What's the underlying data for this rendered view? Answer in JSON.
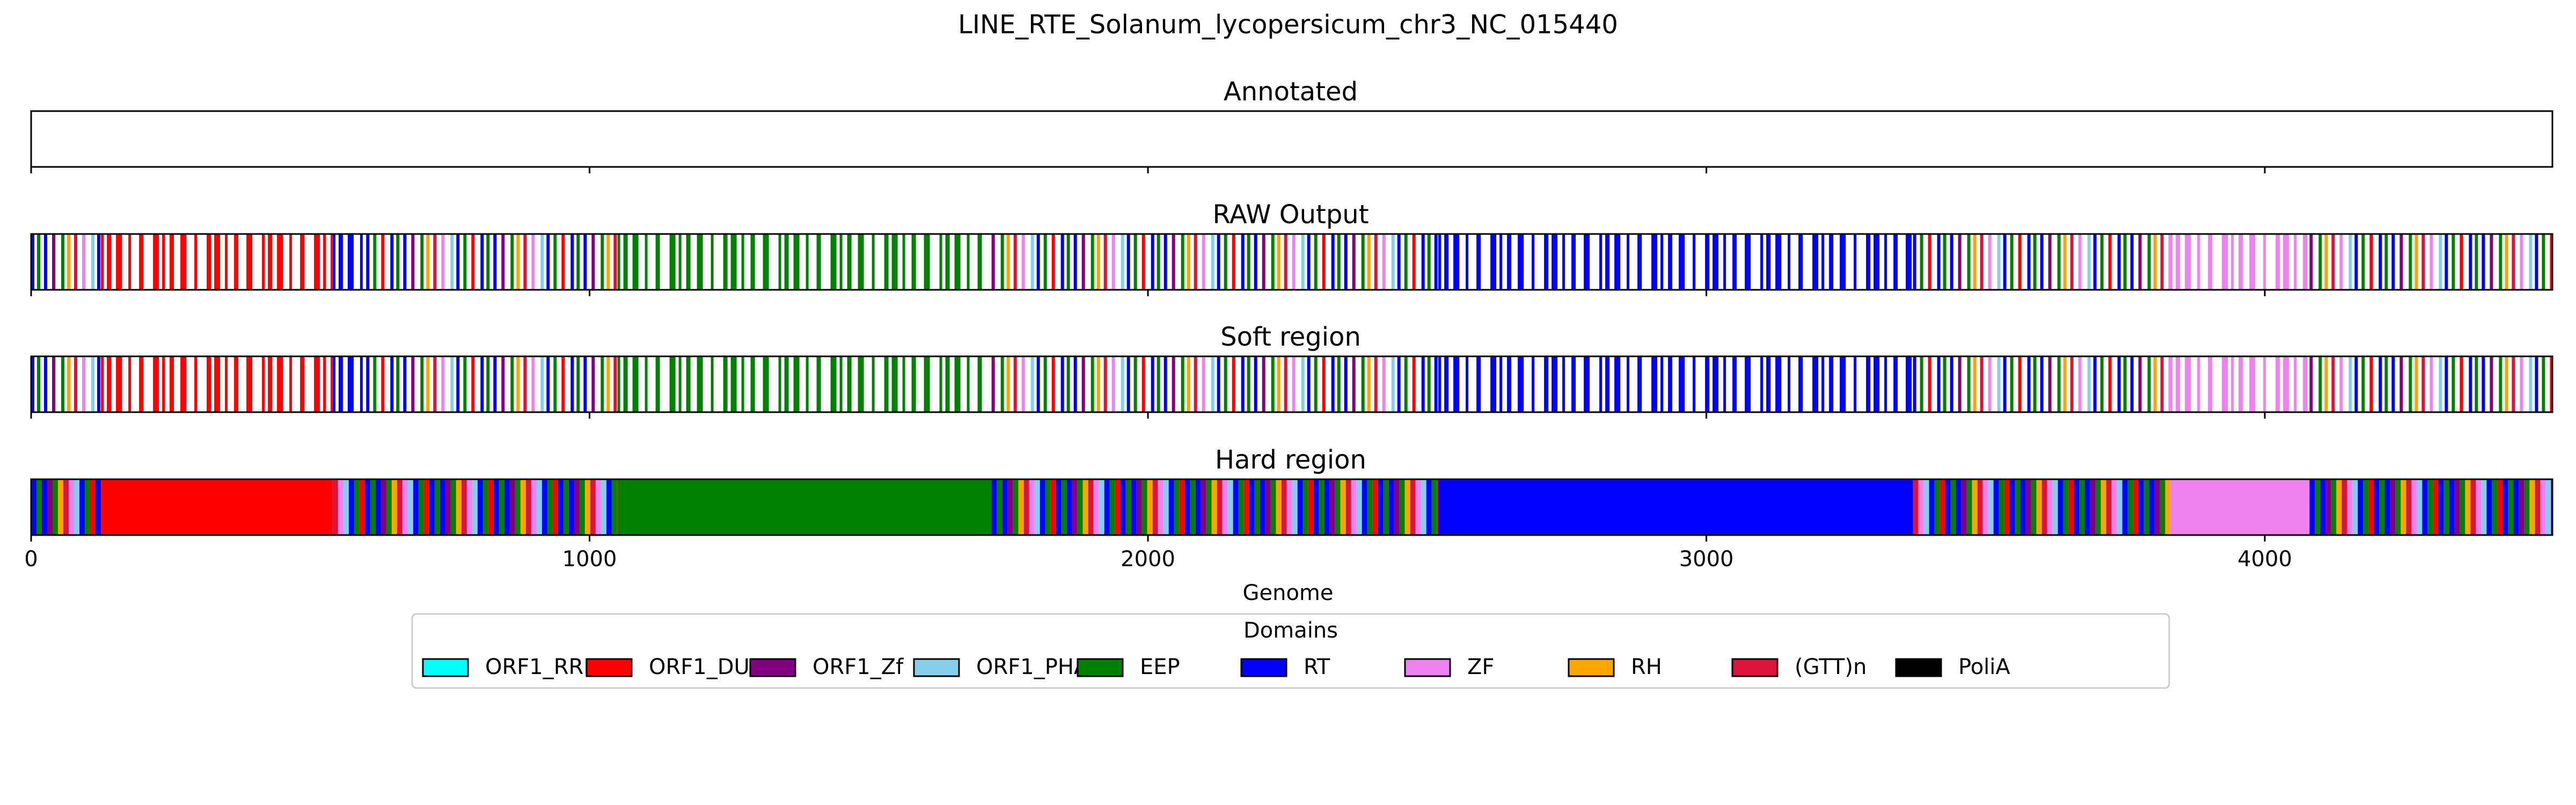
{
  "chart_data": {
    "type": "track",
    "title": "LINE_RTE_Solanum_lycopersicum_chr3_NC_015440",
    "xlabel": "Genome",
    "xlim": [
      0,
      4515
    ],
    "xticks": [
      0,
      1000,
      2000,
      3000,
      4000
    ],
    "xtick_labels": [
      "0",
      "1000",
      "2000",
      "3000",
      "4000"
    ],
    "tracks": [
      {
        "name": "Annotated",
        "segments": []
      },
      {
        "name": "RAW Output",
        "segments": [
          {
            "start": 0,
            "end": 125,
            "domain": "mixed"
          },
          {
            "start": 125,
            "end": 540,
            "domain": "ORF1_DUF"
          },
          {
            "start": 540,
            "end": 600,
            "domain": "RT"
          },
          {
            "start": 600,
            "end": 1050,
            "domain": "mixed"
          },
          {
            "start": 1050,
            "end": 1720,
            "domain": "EEP"
          },
          {
            "start": 1720,
            "end": 2520,
            "domain": "mixed"
          },
          {
            "start": 2520,
            "end": 3370,
            "domain": "RT"
          },
          {
            "start": 3370,
            "end": 3830,
            "domain": "mixed"
          },
          {
            "start": 3830,
            "end": 4080,
            "domain": "ZF"
          },
          {
            "start": 4080,
            "end": 4515,
            "domain": "mixed"
          }
        ]
      },
      {
        "name": "Soft region",
        "segments": [
          {
            "start": 0,
            "end": 125,
            "domain": "mixed"
          },
          {
            "start": 125,
            "end": 540,
            "domain": "ORF1_DUF"
          },
          {
            "start": 540,
            "end": 600,
            "domain": "RT"
          },
          {
            "start": 600,
            "end": 1050,
            "domain": "mixed"
          },
          {
            "start": 1050,
            "end": 1720,
            "domain": "EEP"
          },
          {
            "start": 1720,
            "end": 2520,
            "domain": "mixed"
          },
          {
            "start": 2520,
            "end": 3370,
            "domain": "RT"
          },
          {
            "start": 3370,
            "end": 3830,
            "domain": "mixed"
          },
          {
            "start": 3830,
            "end": 4080,
            "domain": "ZF"
          },
          {
            "start": 4080,
            "end": 4515,
            "domain": "mixed"
          }
        ]
      },
      {
        "name": "Hard region",
        "segments": [
          {
            "start": 0,
            "end": 125,
            "domain": "mixed"
          },
          {
            "start": 125,
            "end": 540,
            "domain": "ORF1_DUF"
          },
          {
            "start": 540,
            "end": 1050,
            "domain": "mixed"
          },
          {
            "start": 1050,
            "end": 1720,
            "domain": "EEP"
          },
          {
            "start": 1720,
            "end": 2520,
            "domain": "mixed"
          },
          {
            "start": 2520,
            "end": 3370,
            "domain": "RT"
          },
          {
            "start": 3370,
            "end": 3830,
            "domain": "mixed"
          },
          {
            "start": 3830,
            "end": 4080,
            "domain": "ZF"
          },
          {
            "start": 4080,
            "end": 4515,
            "domain": "mixed"
          }
        ]
      }
    ],
    "legend": {
      "title": "Domains",
      "placement": "bottom-center",
      "entries": [
        {
          "name": "ORF1_RRM",
          "color": "#00ffff"
        },
        {
          "name": "ORF1_DUF",
          "color": "#ff0000"
        },
        {
          "name": "ORF1_Zf",
          "color": "#800080"
        },
        {
          "name": "ORF1_PHA",
          "color": "#87ceeb"
        },
        {
          "name": "EEP",
          "color": "#008000"
        },
        {
          "name": "RT",
          "color": "#0000ff"
        },
        {
          "name": "ZF",
          "color": "#ee82ee"
        },
        {
          "name": "RH",
          "color": "#ffa500"
        },
        {
          "name": "(GTT)n",
          "color": "#dc143c"
        },
        {
          "name": "PoliA",
          "color": "#000000"
        }
      ]
    }
  }
}
